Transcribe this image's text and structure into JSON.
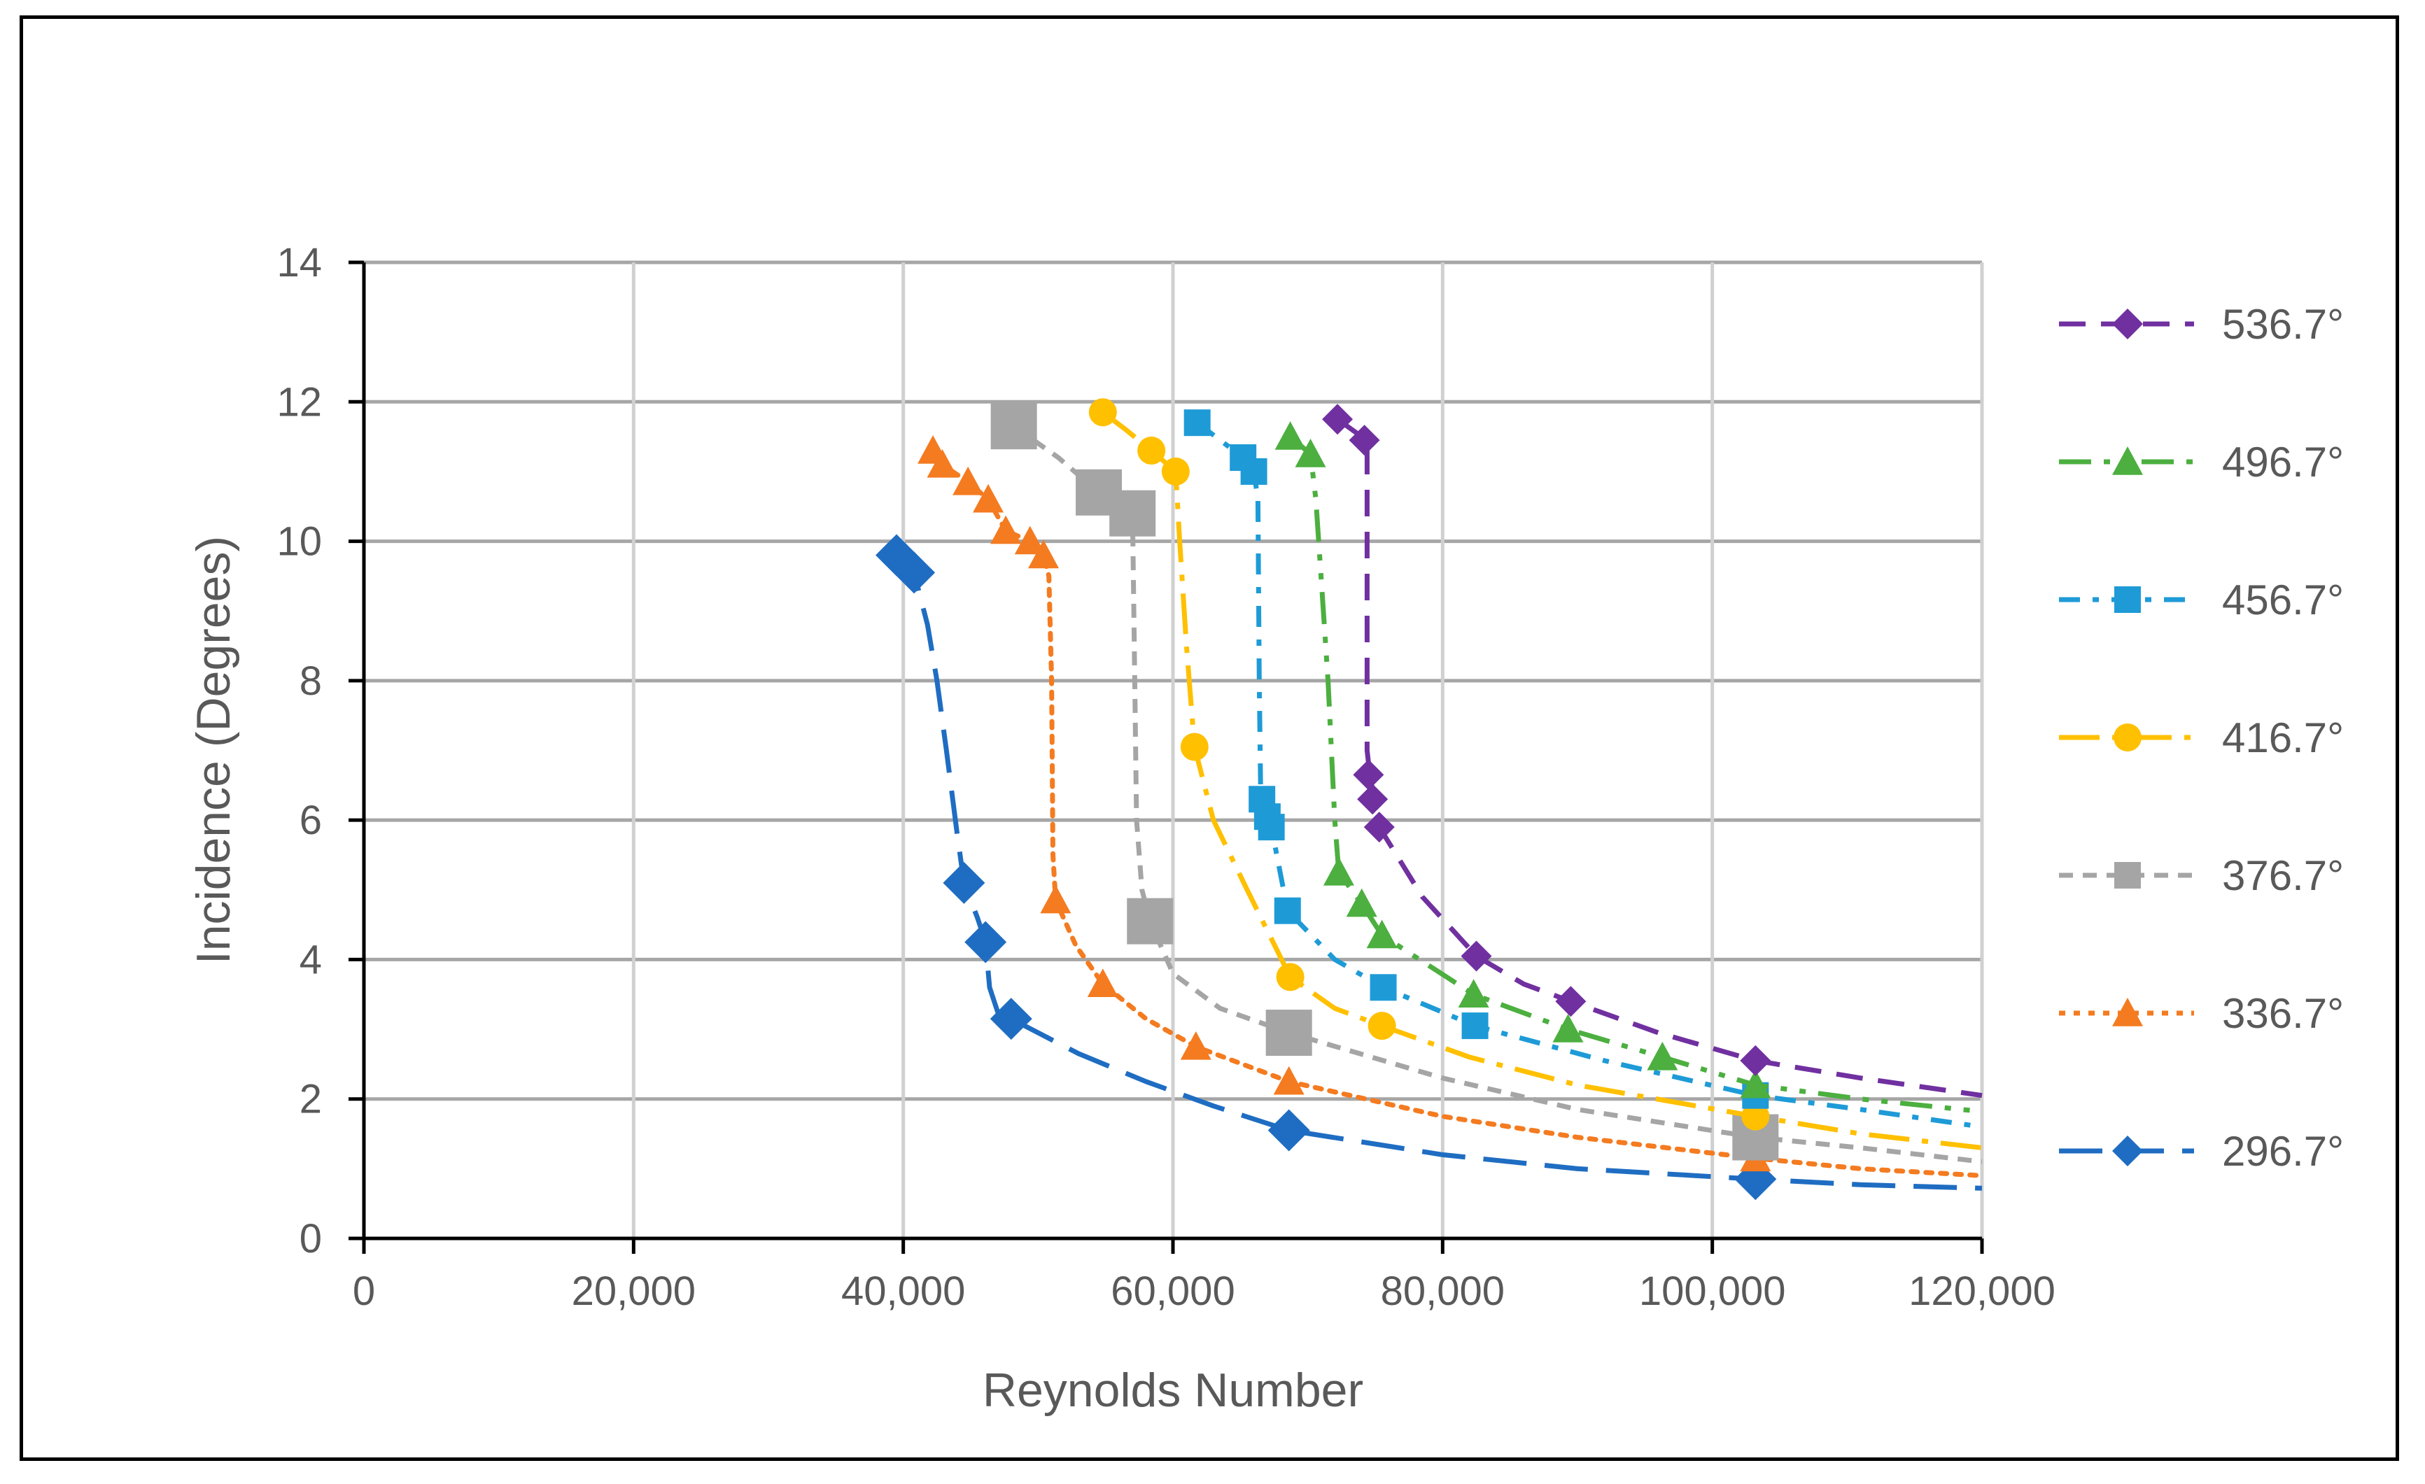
{
  "chart_data": {
    "type": "scatter",
    "title": "",
    "xlabel": "Reynolds Number",
    "ylabel": "Incidence (Degrees)",
    "xlim": [
      0,
      120000
    ],
    "ylim": [
      0,
      14
    ],
    "xticks": [
      0,
      20000,
      40000,
      60000,
      80000,
      100000,
      120000
    ],
    "xtick_labels": [
      "0",
      "20,000",
      "40,000",
      "60,000",
      "80,000",
      "100,000",
      "120,000"
    ],
    "yticks": [
      0,
      2,
      4,
      6,
      8,
      10,
      12,
      14
    ],
    "ytick_labels": [
      "0",
      "2",
      "4",
      "6",
      "8",
      "10",
      "12",
      "14"
    ],
    "grid": true,
    "legend_position": "right",
    "series": [
      {
        "name": "536.7°",
        "color": "#7030A0",
        "marker": "diamond",
        "dash": "dashed",
        "points": [
          [
            72200,
            11.75
          ],
          [
            74200,
            11.45
          ],
          [
            74500,
            6.65
          ],
          [
            74800,
            6.3
          ],
          [
            75300,
            5.9
          ],
          [
            82500,
            4.05
          ],
          [
            89500,
            3.4
          ],
          [
            103200,
            2.55
          ]
        ],
        "curve": [
          [
            72200,
            11.75
          ],
          [
            74000,
            11.5
          ],
          [
            74400,
            11.3
          ],
          [
            74400,
            7.0
          ],
          [
            74600,
            6.65
          ],
          [
            75300,
            5.9
          ],
          [
            78500,
            4.9
          ],
          [
            82500,
            4.05
          ],
          [
            86000,
            3.65
          ],
          [
            89500,
            3.4
          ],
          [
            96000,
            2.95
          ],
          [
            103200,
            2.55
          ],
          [
            111000,
            2.3
          ],
          [
            120000,
            2.05
          ]
        ]
      },
      {
        "name": "496.7°",
        "color": "#4CAF3F",
        "marker": "triangle",
        "dash": "dash-dot-dot",
        "points": [
          [
            68700,
            11.5
          ],
          [
            70200,
            11.25
          ],
          [
            72300,
            5.25
          ],
          [
            74000,
            4.8
          ],
          [
            75500,
            4.35
          ],
          [
            82300,
            3.5
          ],
          [
            89300,
            3.0
          ],
          [
            96300,
            2.6
          ],
          [
            103200,
            2.2
          ]
        ],
        "curve": [
          [
            68700,
            11.5
          ],
          [
            70200,
            11.25
          ],
          [
            70600,
            10.6
          ],
          [
            71500,
            8.0
          ],
          [
            72000,
            6.0
          ],
          [
            72300,
            5.25
          ],
          [
            74000,
            4.8
          ],
          [
            75500,
            4.35
          ],
          [
            82300,
            3.5
          ],
          [
            89300,
            3.0
          ],
          [
            96300,
            2.6
          ],
          [
            103200,
            2.2
          ],
          [
            111000,
            2.0
          ],
          [
            120000,
            1.82
          ]
        ]
      },
      {
        "name": "456.7°",
        "color": "#1E9BD7",
        "marker": "square",
        "dash": "dash-dot",
        "points": [
          [
            61800,
            11.7
          ],
          [
            65200,
            11.2
          ],
          [
            66000,
            11.0
          ],
          [
            66600,
            6.3
          ],
          [
            67000,
            6.05
          ],
          [
            67300,
            5.9
          ],
          [
            68500,
            4.7
          ],
          [
            75600,
            3.6
          ],
          [
            82400,
            3.05
          ],
          [
            103200,
            2.05
          ]
        ],
        "curve": [
          [
            61800,
            11.7
          ],
          [
            65200,
            11.2
          ],
          [
            66000,
            11.0
          ],
          [
            66300,
            10.6
          ],
          [
            66400,
            8.0
          ],
          [
            66500,
            6.5
          ],
          [
            67000,
            6.05
          ],
          [
            67300,
            5.9
          ],
          [
            68500,
            4.7
          ],
          [
            72000,
            4.0
          ],
          [
            75600,
            3.6
          ],
          [
            82400,
            3.05
          ],
          [
            92000,
            2.55
          ],
          [
            103200,
            2.05
          ],
          [
            111000,
            1.85
          ],
          [
            120000,
            1.6
          ]
        ]
      },
      {
        "name": "416.7°",
        "color": "#FFC000",
        "marker": "circle",
        "dash": "long-dash-dot",
        "points": [
          [
            54800,
            11.85
          ],
          [
            58400,
            11.3
          ],
          [
            60200,
            11.0
          ],
          [
            61600,
            7.05
          ],
          [
            68700,
            3.75
          ],
          [
            75500,
            3.05
          ],
          [
            103200,
            1.75
          ]
        ],
        "curve": [
          [
            54800,
            11.85
          ],
          [
            56500,
            11.6
          ],
          [
            58400,
            11.3
          ],
          [
            60200,
            11.0
          ],
          [
            60500,
            10.0
          ],
          [
            61000,
            8.5
          ],
          [
            61600,
            7.05
          ],
          [
            63000,
            6.0
          ],
          [
            65500,
            5.0
          ],
          [
            68700,
            3.75
          ],
          [
            72000,
            3.3
          ],
          [
            75500,
            3.05
          ],
          [
            82000,
            2.6
          ],
          [
            90000,
            2.2
          ],
          [
            103200,
            1.75
          ],
          [
            111000,
            1.5
          ],
          [
            120000,
            1.3
          ]
        ]
      },
      {
        "name": "376.7°",
        "color": "#A5A5A5",
        "marker": "square-large",
        "dash": "short-dash",
        "points": [
          [
            48200,
            11.65
          ],
          [
            54500,
            10.7
          ],
          [
            57000,
            10.4
          ],
          [
            58300,
            4.55
          ],
          [
            68600,
            2.95
          ],
          [
            103200,
            1.45
          ]
        ],
        "curve": [
          [
            48200,
            11.65
          ],
          [
            51500,
            11.2
          ],
          [
            54500,
            10.7
          ],
          [
            56200,
            10.5
          ],
          [
            57000,
            10.4
          ],
          [
            57100,
            9.0
          ],
          [
            57300,
            6.0
          ],
          [
            57700,
            5.0
          ],
          [
            58300,
            4.55
          ],
          [
            60000,
            3.8
          ],
          [
            63500,
            3.3
          ],
          [
            68600,
            2.95
          ],
          [
            80000,
            2.3
          ],
          [
            90000,
            1.85
          ],
          [
            103200,
            1.45
          ],
          [
            111000,
            1.3
          ],
          [
            120000,
            1.1
          ]
        ]
      },
      {
        "name": "336.7°",
        "color": "#F47B20",
        "marker": "triangle",
        "dash": "dotted",
        "points": [
          [
            42200,
            11.3
          ],
          [
            42900,
            11.1
          ],
          [
            44800,
            10.85
          ],
          [
            46300,
            10.6
          ],
          [
            47600,
            10.15
          ],
          [
            49400,
            10.0
          ],
          [
            50400,
            9.8
          ],
          [
            51300,
            4.85
          ],
          [
            54800,
            3.65
          ],
          [
            61700,
            2.75
          ],
          [
            68600,
            2.25
          ],
          [
            103200,
            1.15
          ]
        ],
        "curve": [
          [
            42200,
            11.3
          ],
          [
            42900,
            11.1
          ],
          [
            44800,
            10.85
          ],
          [
            46300,
            10.6
          ],
          [
            47600,
            10.15
          ],
          [
            49400,
            10.0
          ],
          [
            50400,
            9.8
          ],
          [
            50800,
            9.5
          ],
          [
            51000,
            8.0
          ],
          [
            51100,
            5.5
          ],
          [
            51300,
            4.85
          ],
          [
            52800,
            4.2
          ],
          [
            54800,
            3.65
          ],
          [
            58000,
            3.15
          ],
          [
            61700,
            2.75
          ],
          [
            68600,
            2.25
          ],
          [
            80000,
            1.75
          ],
          [
            90000,
            1.45
          ],
          [
            103200,
            1.15
          ],
          [
            111000,
            1.0
          ],
          [
            120000,
            0.9
          ]
        ]
      },
      {
        "name": "296.7°",
        "color": "#1F6DC2",
        "marker": "diamond-large",
        "dash": "long-dash",
        "points": [
          [
            39500,
            9.8
          ],
          [
            40800,
            9.55
          ],
          [
            44500,
            5.1
          ],
          [
            46100,
            4.25
          ],
          [
            48000,
            3.15
          ],
          [
            68600,
            1.55
          ],
          [
            103200,
            0.85
          ]
        ],
        "curve": [
          [
            39500,
            9.8
          ],
          [
            40800,
            9.55
          ],
          [
            41800,
            8.8
          ],
          [
            42500,
            8.0
          ],
          [
            43200,
            7.0
          ],
          [
            44000,
            5.8
          ],
          [
            44500,
            5.1
          ],
          [
            45500,
            4.6
          ],
          [
            46100,
            4.25
          ],
          [
            46400,
            3.6
          ],
          [
            47000,
            3.25
          ],
          [
            48000,
            3.15
          ],
          [
            53000,
            2.65
          ],
          [
            58000,
            2.25
          ],
          [
            63000,
            1.9
          ],
          [
            68600,
            1.55
          ],
          [
            80000,
            1.2
          ],
          [
            90000,
            1.0
          ],
          [
            103200,
            0.85
          ],
          [
            111000,
            0.77
          ],
          [
            120000,
            0.72
          ]
        ]
      }
    ]
  }
}
